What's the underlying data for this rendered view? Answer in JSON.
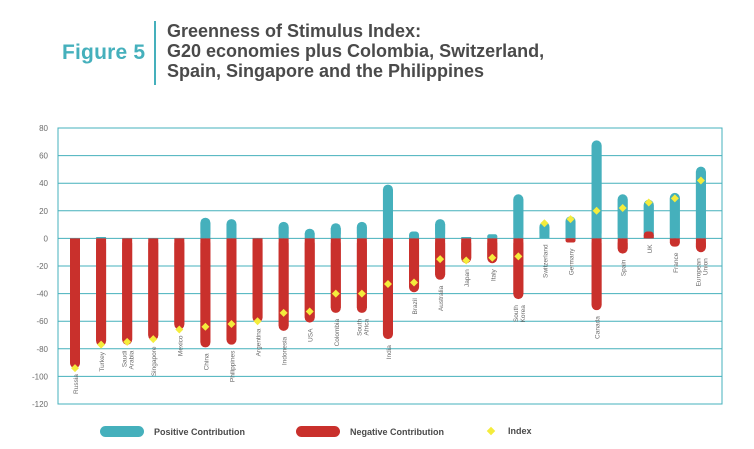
{
  "figure_label": "Figure 5",
  "title_lines": [
    "Greenness of Stimulus Index:",
    "G20 economies plus Colombia, Switzerland,",
    "Spain, Singapore and the Philippines"
  ],
  "colors": {
    "positive": "#45b0bc",
    "negative": "#c9302c",
    "index": "#f4ec3c",
    "axis": "#45b0bc",
    "title": "#4a4a4a",
    "figure_label": "#45b0bc"
  },
  "legend": {
    "positive": "Positive Contribution",
    "negative": "Negative Contribution",
    "index": "Index"
  },
  "chart_data": {
    "type": "bar",
    "ylim": [
      -120,
      80
    ],
    "yticks": [
      "80",
      "60",
      "40",
      "20",
      "0",
      "-20",
      "-40",
      "-60",
      "-80",
      "-100",
      "-120"
    ],
    "grid": true,
    "legend_position": "bottom",
    "categories": [
      [
        "Russia"
      ],
      [
        "Turkey"
      ],
      [
        "Saudi",
        "Arabia"
      ],
      [
        "Singapore"
      ],
      [
        "Mexico"
      ],
      [
        "China"
      ],
      [
        "Philippines"
      ],
      [
        "Argentina"
      ],
      [
        "Indonesia"
      ],
      [
        "USA"
      ],
      [
        "Colombia"
      ],
      [
        "South",
        "Africa"
      ],
      [
        "India"
      ],
      [
        "Brazil"
      ],
      [
        "Australia"
      ],
      [
        "Japan"
      ],
      [
        "Italy"
      ],
      [
        "South",
        "Korea"
      ],
      [
        "Switzerland"
      ],
      [
        "Germany"
      ],
      [
        "Canada"
      ],
      [
        "Spain"
      ],
      [
        "UK"
      ],
      [
        "France"
      ],
      [
        "European",
        "Union"
      ]
    ],
    "series": [
      {
        "name": "Positive Contribution",
        "values": [
          0,
          1,
          0,
          0,
          0,
          15,
          14,
          0,
          12,
          7,
          11,
          12,
          39,
          5,
          14,
          1,
          3,
          32,
          12,
          16,
          71,
          32,
          28,
          33,
          52
        ]
      },
      {
        "name": "Negative Contribution",
        "values": [
          -94,
          -78,
          -77,
          -74,
          -66,
          -79,
          -77,
          -61,
          -67,
          -61,
          -54,
          -54,
          -73,
          -39,
          -30,
          -18,
          -18,
          -44,
          0,
          -3,
          -52,
          -11,
          5,
          -6,
          -10
        ]
      },
      {
        "name": "Index",
        "values": [
          -94,
          -77,
          -75,
          -73,
          -66,
          -64,
          -62,
          -60,
          -54,
          -53,
          -40,
          -40,
          -33,
          -32,
          -15,
          -16,
          -14,
          -13,
          11,
          14,
          20,
          22,
          26,
          29,
          42
        ]
      }
    ]
  }
}
